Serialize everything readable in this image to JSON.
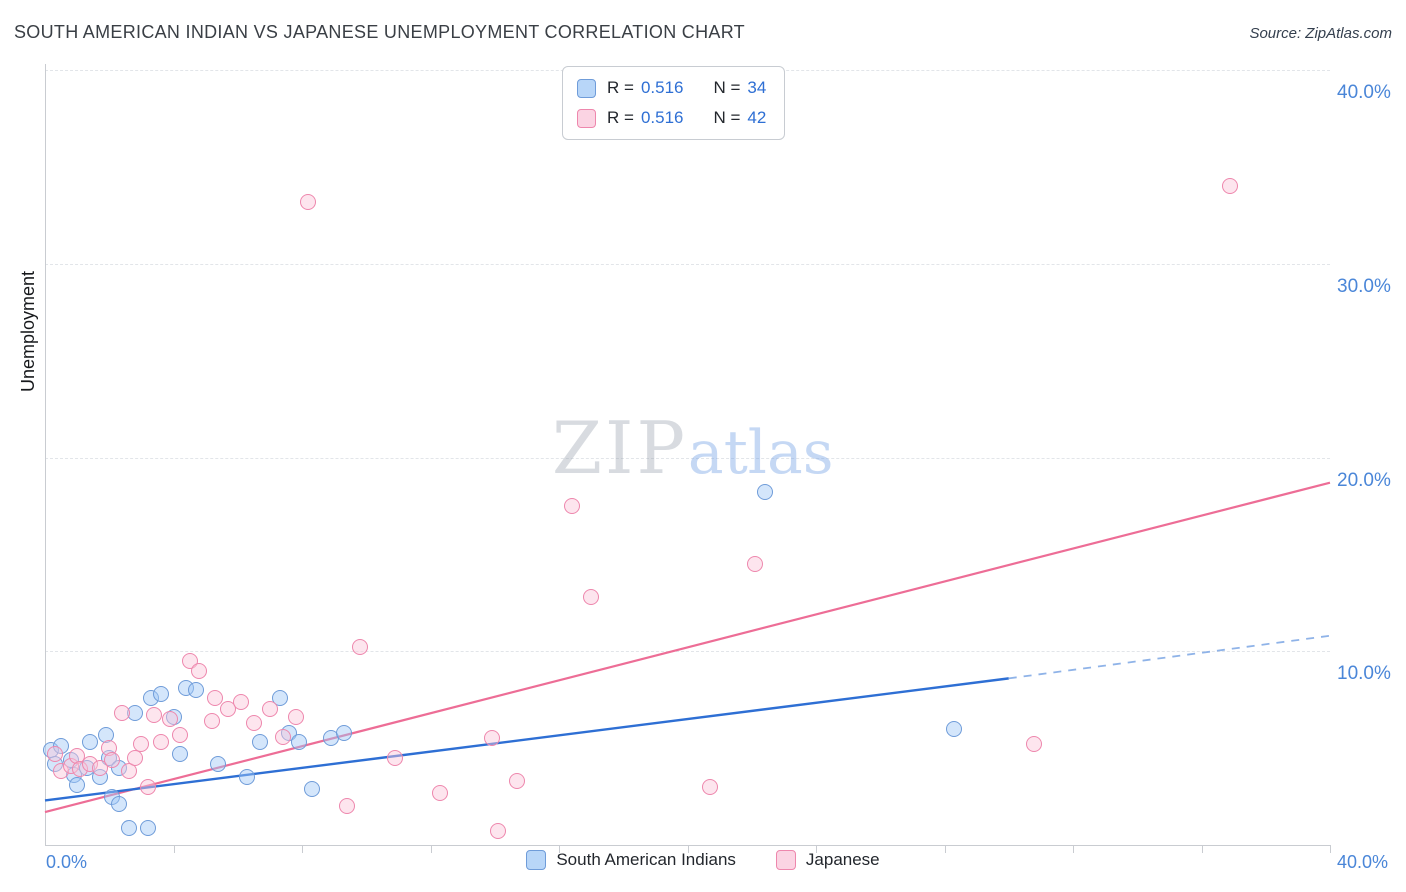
{
  "header": {
    "title": "SOUTH AMERICAN INDIAN VS JAPANESE UNEMPLOYMENT CORRELATION CHART",
    "source": "Source: ZipAtlas.com"
  },
  "watermark": {
    "part1": "ZIP",
    "part2": "atlas"
  },
  "colors": {
    "axis_label_blue": "#4a86d8",
    "legend_value_blue": "#2e6fd4",
    "grid": "#e2e5e9",
    "blue_marker_fill": "rgba(160,200,246,0.45)",
    "blue_marker_stroke": "#6f9cd9",
    "pink_marker_fill": "rgba(250,198,218,0.45)",
    "pink_marker_stroke": "#ee87ad",
    "blue_trend": "#2e6fd4",
    "blue_trend_dashed": "#8fb3e8",
    "pink_trend": "#ed6d96"
  },
  "legend_box": {
    "rows": [
      {
        "r_label": "R =",
        "r_value": "0.516",
        "n_label": "N =",
        "n_value": "34"
      },
      {
        "r_label": "R =",
        "r_value": "0.516",
        "n_label": "N =",
        "n_value": "42"
      }
    ]
  },
  "chart_data": {
    "type": "scatter",
    "title": "South American Indian vs Japanese Unemployment Correlation Chart",
    "ylabel": "Unemployment",
    "xlim": [
      0,
      40
    ],
    "ylim": [
      0,
      40
    ],
    "grid": "horizontal dashed",
    "legend_position": "bottom center",
    "x_axis_labels": {
      "min": "0.0%",
      "max": "40.0%"
    },
    "y_ticks": [
      {
        "label": "40.0%",
        "value": 40
      },
      {
        "label": "30.0%",
        "value": 30
      },
      {
        "label": "20.0%",
        "value": 20
      },
      {
        "label": "10.0%",
        "value": 10
      }
    ],
    "series": [
      {
        "name": "South American Indians",
        "r": 0.516,
        "n": 34,
        "marker": {
          "fill": "rgba(160,200,246,0.45)",
          "stroke": "#6f9cd9"
        },
        "trend_color": "#2e6fd4",
        "trend": {
          "x1": 0,
          "y1": 2.3,
          "x2": 30,
          "y2": 8.6
        },
        "trend_extension": {
          "x1": 30,
          "y1": 8.6,
          "x2": 40,
          "y2": 10.8,
          "style": "dashed",
          "color": "#8fb3e8"
        },
        "points": [
          [
            0.2,
            4.9
          ],
          [
            0.3,
            4.2
          ],
          [
            0.5,
            5.1
          ],
          [
            0.8,
            4.4
          ],
          [
            0.9,
            3.6
          ],
          [
            1.0,
            3.1
          ],
          [
            1.3,
            4.0
          ],
          [
            1.4,
            5.3
          ],
          [
            1.7,
            3.5
          ],
          [
            1.9,
            5.7
          ],
          [
            2.0,
            4.5
          ],
          [
            2.1,
            2.5
          ],
          [
            2.3,
            2.1
          ],
          [
            2.3,
            4.0
          ],
          [
            2.6,
            0.9
          ],
          [
            2.8,
            6.8
          ],
          [
            3.2,
            0.9
          ],
          [
            3.3,
            7.6
          ],
          [
            3.6,
            7.8
          ],
          [
            4.0,
            6.6
          ],
          [
            4.2,
            4.7
          ],
          [
            4.4,
            8.1
          ],
          [
            4.7,
            8.0
          ],
          [
            5.4,
            4.2
          ],
          [
            6.3,
            3.5
          ],
          [
            6.7,
            5.3
          ],
          [
            7.3,
            7.6
          ],
          [
            7.6,
            5.8
          ],
          [
            7.9,
            5.3
          ],
          [
            8.3,
            2.9
          ],
          [
            8.9,
            5.5
          ],
          [
            9.3,
            5.8
          ],
          [
            22.4,
            18.2
          ],
          [
            28.3,
            6.0
          ]
        ]
      },
      {
        "name": "Japanese",
        "r": 0.516,
        "n": 42,
        "marker": {
          "fill": "rgba(250,198,218,0.45)",
          "stroke": "#ee87ad"
        },
        "trend_color": "#ed6d96",
        "trend": {
          "x1": 0,
          "y1": 1.7,
          "x2": 40,
          "y2": 18.7
        },
        "points": [
          [
            0.3,
            4.7
          ],
          [
            0.5,
            3.8
          ],
          [
            0.8,
            4.1
          ],
          [
            1.0,
            4.6
          ],
          [
            1.1,
            3.9
          ],
          [
            1.4,
            4.2
          ],
          [
            1.7,
            4.0
          ],
          [
            2.0,
            5.0
          ],
          [
            2.1,
            4.4
          ],
          [
            2.4,
            6.8
          ],
          [
            2.6,
            3.8
          ],
          [
            2.8,
            4.5
          ],
          [
            3.0,
            5.2
          ],
          [
            3.2,
            3.0
          ],
          [
            3.4,
            6.7
          ],
          [
            3.6,
            5.3
          ],
          [
            3.9,
            6.5
          ],
          [
            4.2,
            5.7
          ],
          [
            4.5,
            9.5
          ],
          [
            4.8,
            9.0
          ],
          [
            5.2,
            6.4
          ],
          [
            5.3,
            7.6
          ],
          [
            5.7,
            7.0
          ],
          [
            6.1,
            7.4
          ],
          [
            6.5,
            6.3
          ],
          [
            7.0,
            7.0
          ],
          [
            7.4,
            5.6
          ],
          [
            7.8,
            6.6
          ],
          [
            8.2,
            33.2
          ],
          [
            9.4,
            2.0
          ],
          [
            9.8,
            10.2
          ],
          [
            10.9,
            4.5
          ],
          [
            12.3,
            2.7
          ],
          [
            13.9,
            5.5
          ],
          [
            14.1,
            0.7
          ],
          [
            14.7,
            3.3
          ],
          [
            16.4,
            17.5
          ],
          [
            17.0,
            12.8
          ],
          [
            20.7,
            3.0
          ],
          [
            22.1,
            14.5
          ],
          [
            30.8,
            5.2
          ],
          [
            36.9,
            34.0
          ]
        ]
      }
    ]
  }
}
